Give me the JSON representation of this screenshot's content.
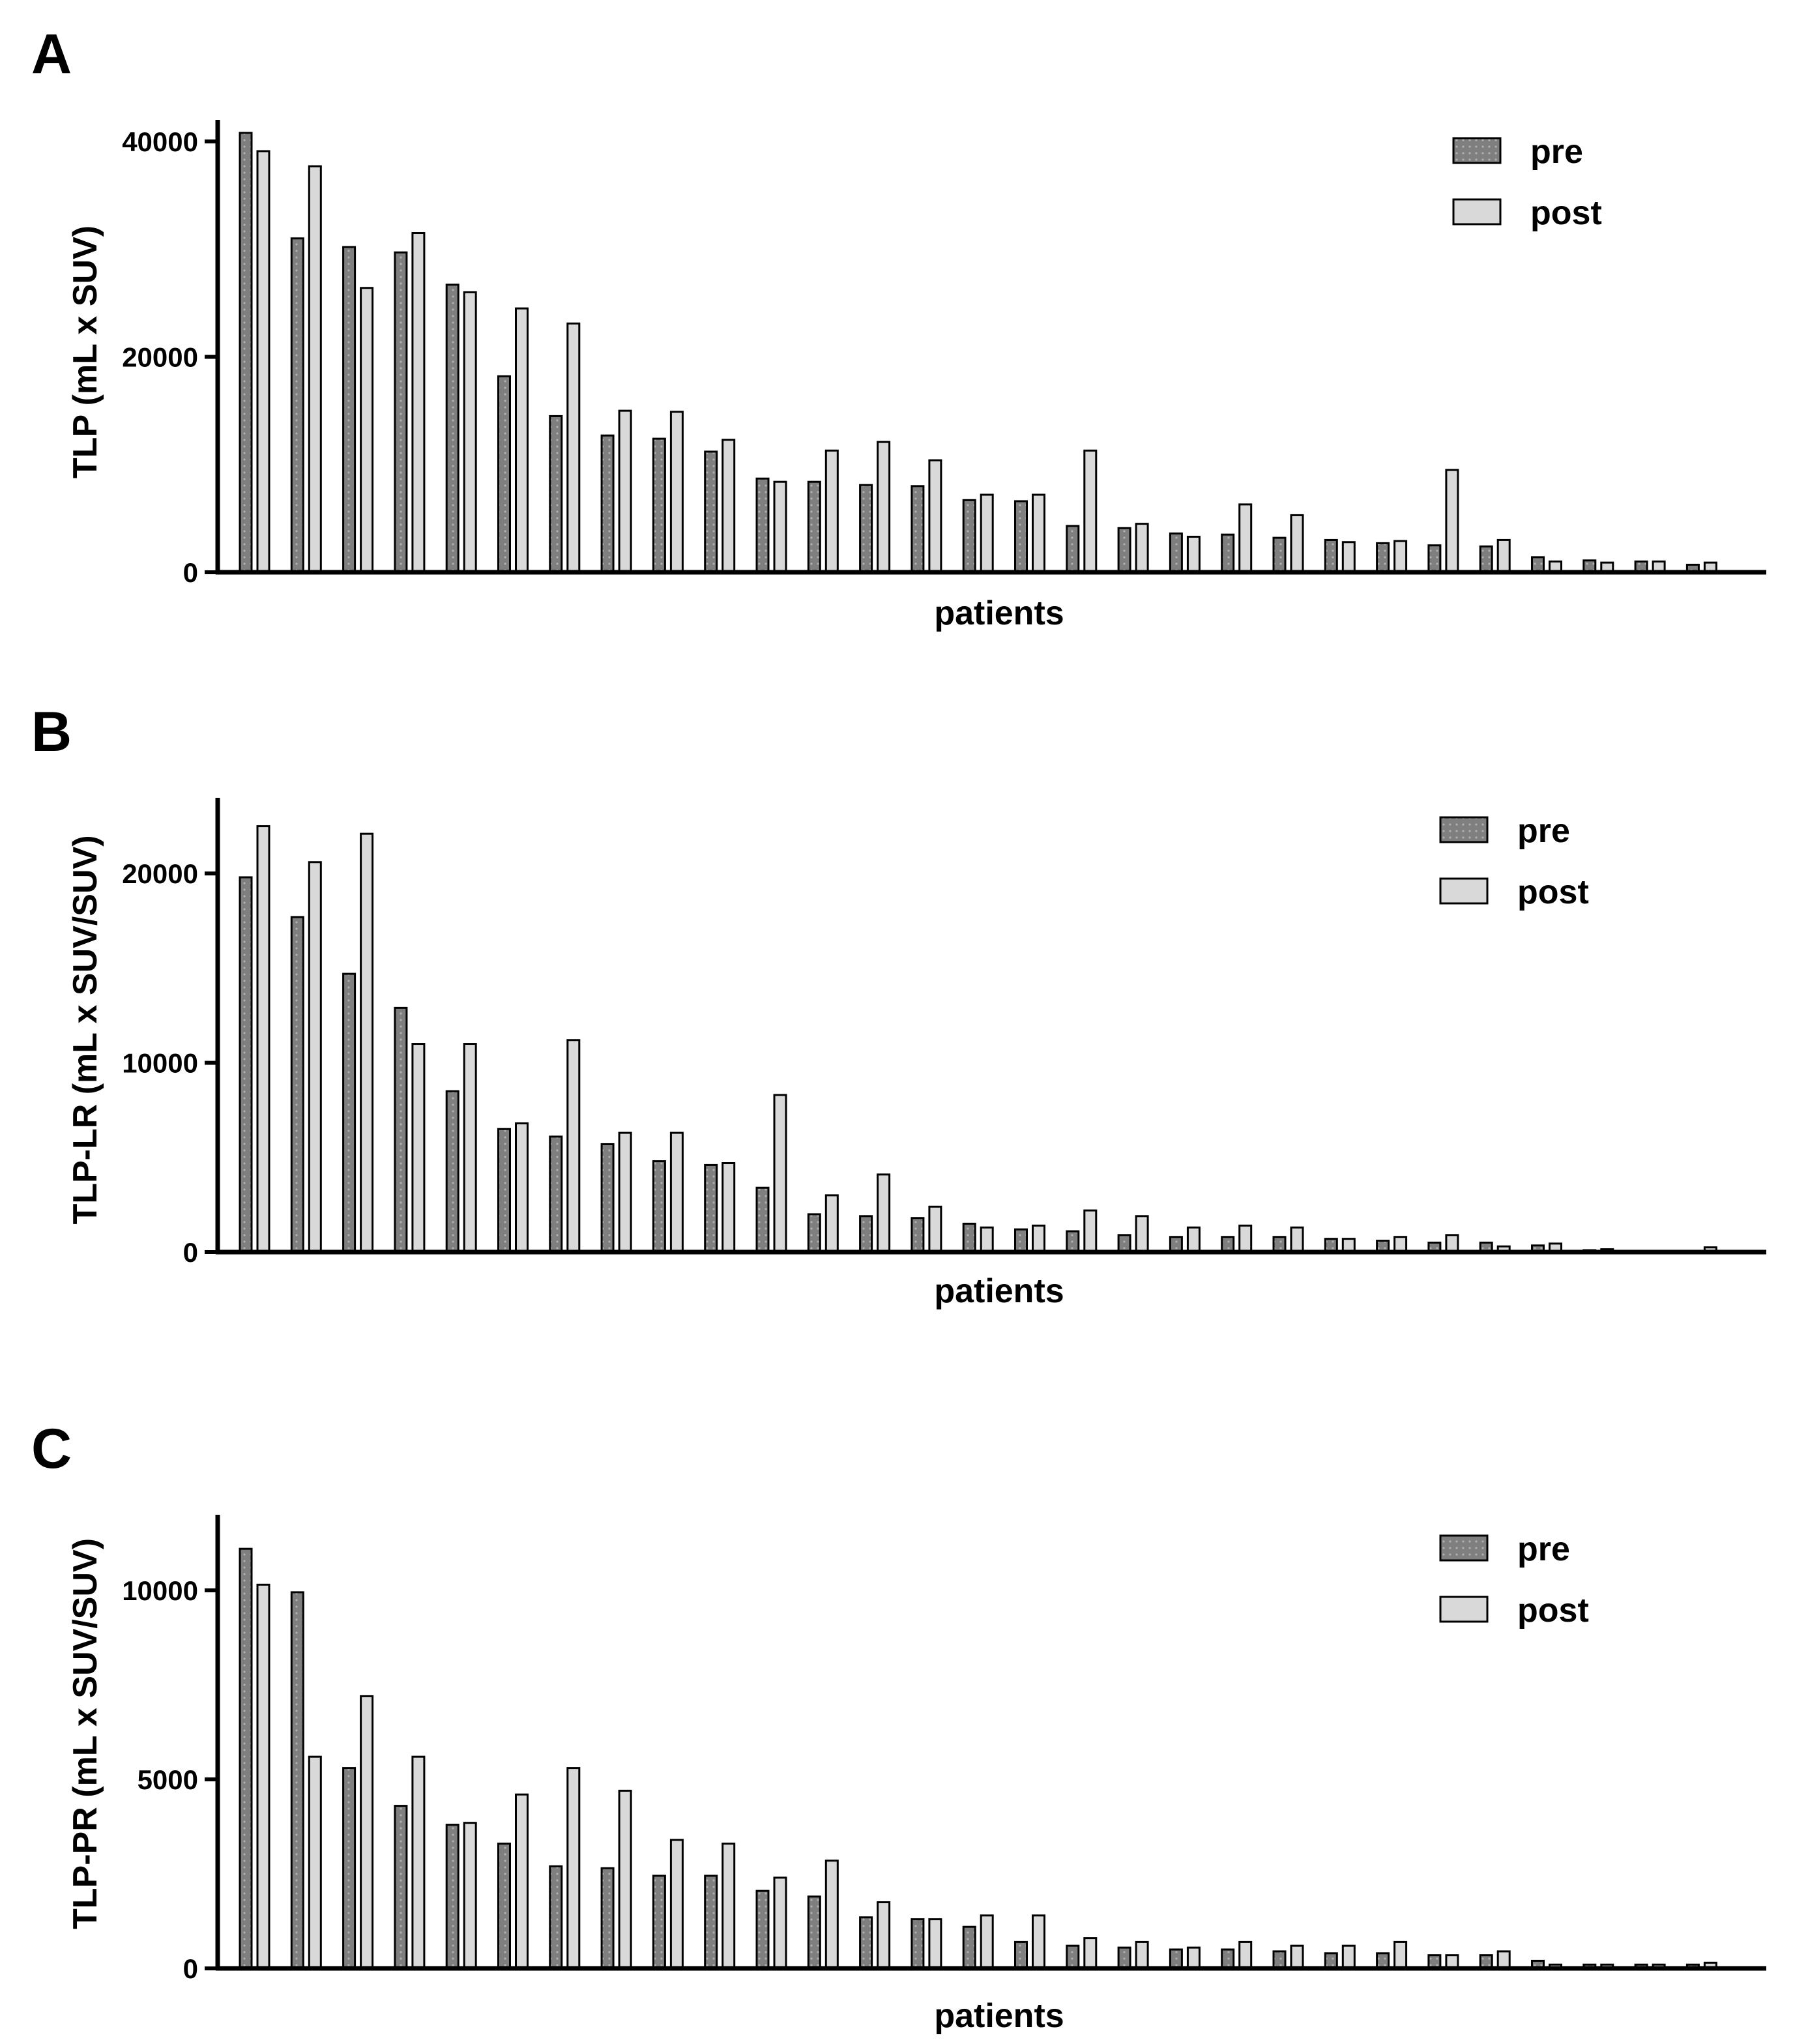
{
  "colors": {
    "pre_fill": "#7f7f7f",
    "post_fill": "#d9d9d9",
    "stroke": "#000000",
    "pre_dots": "#b0b0b0"
  },
  "chart_data": [
    {
      "panel": "A",
      "type": "bar",
      "title": "",
      "xlabel": "patients",
      "ylabel": "TLP (mL x SUV)",
      "ylim": [
        0,
        42000
      ],
      "yticks": [
        0,
        20000,
        40000
      ],
      "ytick_labels": [
        "0",
        "20000",
        "40000"
      ],
      "legend": [
        "pre",
        "post"
      ],
      "legend_position": "top-right",
      "series": [
        {
          "name": "pre",
          "values": [
            40800,
            31000,
            30200,
            29700,
            26700,
            18200,
            14500,
            12700,
            12400,
            11200,
            8700,
            8400,
            8100,
            8000,
            6700,
            6600,
            4300,
            4100,
            3600,
            3500,
            3200,
            3000,
            2700,
            2500,
            2400,
            1400,
            1100,
            1000,
            700
          ]
        },
        {
          "name": "post",
          "values": [
            39100,
            37700,
            26400,
            31500,
            26000,
            24500,
            23100,
            15000,
            14900,
            12300,
            8400,
            11300,
            12100,
            10400,
            7200,
            7200,
            11300,
            4500,
            3300,
            6300,
            5300,
            2800,
            2900,
            9500,
            3000,
            1000,
            900,
            1000,
            900
          ]
        }
      ]
    },
    {
      "panel": "B",
      "type": "bar",
      "title": "",
      "xlabel": "patients",
      "ylabel": "TLP-LR (mL x SUV/SUV)",
      "ylim": [
        0,
        24000
      ],
      "yticks": [
        0,
        10000,
        20000
      ],
      "ytick_labels": [
        "0",
        "10000",
        "20000"
      ],
      "legend": [
        "pre",
        "post"
      ],
      "legend_position": "top-right",
      "series": [
        {
          "name": "pre",
          "values": [
            19800,
            17700,
            14700,
            12900,
            8500,
            6500,
            6100,
            5700,
            4800,
            4600,
            3400,
            2000,
            1900,
            1800,
            1500,
            1200,
            1100,
            900,
            800,
            800,
            800,
            700,
            600,
            500,
            500,
            350,
            100,
            50,
            50
          ]
        },
        {
          "name": "post",
          "values": [
            22500,
            20600,
            22100,
            11000,
            11000,
            6800,
            11200,
            6300,
            6300,
            4700,
            8300,
            3000,
            4100,
            2400,
            1300,
            1400,
            2200,
            1900,
            1300,
            1400,
            1300,
            700,
            800,
            900,
            300,
            450,
            150,
            50,
            250
          ]
        }
      ]
    },
    {
      "panel": "C",
      "type": "bar",
      "title": "",
      "xlabel": "patients",
      "ylabel": "TLP-PR (mL x SUV/SUV)",
      "ylim": [
        0,
        12000
      ],
      "yticks": [
        0,
        5000,
        10000
      ],
      "ytick_labels": [
        "0",
        "5000",
        "10000"
      ],
      "legend": [
        "pre",
        "post"
      ],
      "legend_position": "top-right",
      "series": [
        {
          "name": "pre",
          "values": [
            11100,
            9950,
            5300,
            4300,
            3800,
            3300,
            2700,
            2650,
            2450,
            2450,
            2050,
            1900,
            1350,
            1300,
            1100,
            700,
            600,
            550,
            500,
            500,
            450,
            400,
            400,
            350,
            350,
            200,
            100,
            100,
            100
          ]
        },
        {
          "name": "post",
          "values": [
            10150,
            5600,
            7200,
            5600,
            3850,
            4600,
            5300,
            4700,
            3400,
            3300,
            2400,
            2850,
            1750,
            1300,
            1400,
            1400,
            800,
            700,
            550,
            700,
            600,
            600,
            700,
            350,
            450,
            100,
            100,
            100,
            150
          ]
        }
      ]
    }
  ]
}
